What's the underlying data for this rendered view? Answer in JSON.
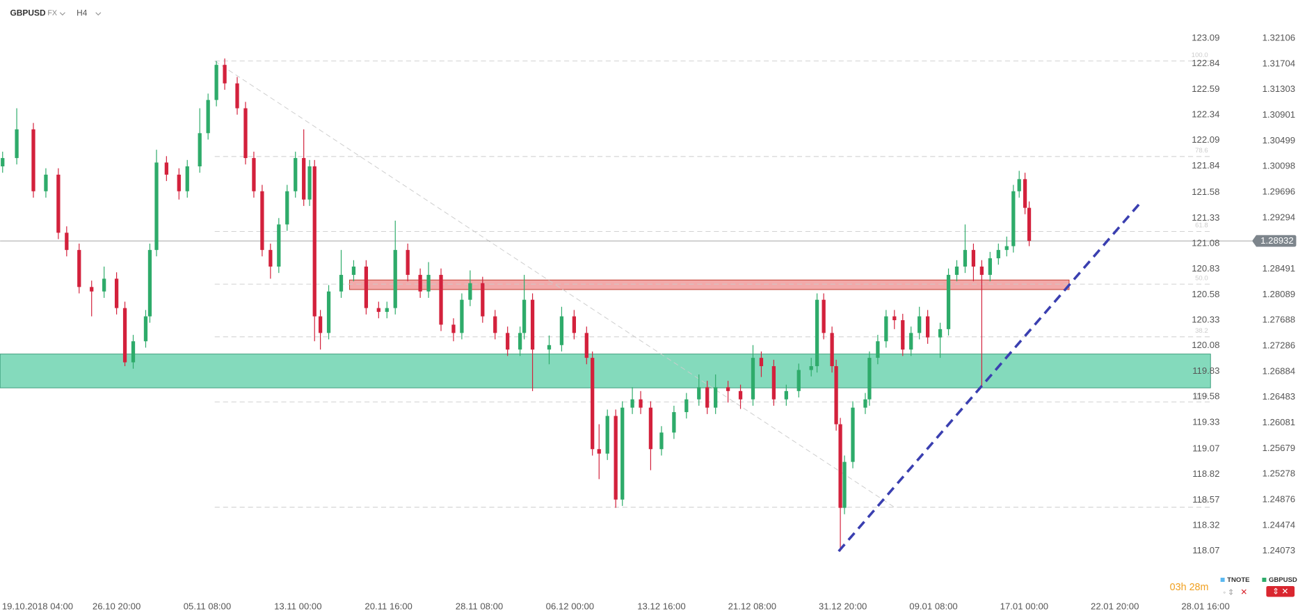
{
  "chart_data": {
    "type": "candlestick",
    "symbol": "GBPUSD",
    "market": "FX",
    "timeframe": "H4",
    "up_color": "#2eab6a",
    "down_color": "#d3213c",
    "xlim": [
      0,
      145.5
    ],
    "ylim": [
      1.23382,
      1.32706
    ],
    "yticks": [
      1.32106,
      1.31704,
      1.31303,
      1.30901,
      1.30499,
      1.30098,
      1.29696,
      1.29294,
      1.28491,
      1.28089,
      1.27688,
      1.27286,
      1.26884,
      1.26483,
      1.26081,
      1.25679,
      1.25278,
      1.24876,
      1.24474,
      1.24073
    ],
    "y2lim": [
      117.638,
      123.465
    ],
    "y2ticks": [
      123.09,
      122.84,
      122.59,
      122.34,
      122.09,
      121.84,
      121.58,
      121.33,
      121.08,
      120.83,
      120.58,
      120.33,
      120.08,
      119.83,
      119.58,
      119.33,
      119.07,
      118.82,
      118.57,
      118.32,
      118.07
    ],
    "xticks": [
      {
        "value": 4.5,
        "label": "19.10.2018  04:00"
      },
      {
        "value": 14,
        "label": "26.10  20:00"
      },
      {
        "value": 24.9,
        "label": "05.11  08:00"
      },
      {
        "value": 35.8,
        "label": "13.11  00:00"
      },
      {
        "value": 46.7,
        "label": "20.11  16:00"
      },
      {
        "value": 57.6,
        "label": "28.11  08:00"
      },
      {
        "value": 68.5,
        "label": "06.12  00:00"
      },
      {
        "value": 79.5,
        "label": "13.12  16:00"
      },
      {
        "value": 90.4,
        "label": "21.12  08:00"
      },
      {
        "value": 101.3,
        "label": "31.12  20:00"
      },
      {
        "value": 112.2,
        "label": "09.01  08:00"
      },
      {
        "value": 123.1,
        "label": "17.01  00:00"
      },
      {
        "value": 134,
        "label": "22.01  20:00"
      },
      {
        "value": 144.9,
        "label": "28.01  16:00"
      }
    ],
    "x": [
      0.3,
      2,
      4,
      5.5,
      7,
      8,
      9.5,
      11,
      12.5,
      14,
      15,
      16,
      17.5,
      18,
      18.8,
      20,
      21.5,
      22.5,
      24,
      25,
      26,
      27,
      28.5,
      29.5,
      30.5,
      31.5,
      32.5,
      33.5,
      34.5,
      35.5,
      36.5,
      37.2,
      37.8,
      38.5,
      39.5,
      41,
      42.5,
      44,
      45.5,
      46.5,
      47.5,
      49,
      50.5,
      51.5,
      53,
      54.5,
      55.5,
      56.5,
      58,
      59.5,
      61,
      62.5,
      63,
      64,
      66,
      67.5,
      69,
      70.5,
      71.2,
      72,
      73,
      74,
      74.8,
      76,
      77,
      78.2,
      79.5,
      81,
      82.5,
      84,
      85,
      86,
      87.5,
      89,
      90.5,
      91.5,
      93,
      94.5,
      96,
      97.5,
      98.2,
      99,
      100,
      100.5,
      101,
      101.5,
      102.5,
      104,
      104.5,
      105.5,
      106.5,
      107.5,
      108.5,
      109.5,
      110.5,
      111.5,
      113,
      114,
      115,
      116,
      117,
      118,
      119,
      120,
      121,
      121.8,
      122.5,
      123.2,
      123.7
    ],
    "ohlc": [
      [
        1.301,
        1.3033,
        1.3,
        1.3023
      ],
      [
        1.3023,
        1.3101,
        1.3013,
        1.3068
      ],
      [
        1.3068,
        1.3078,
        1.2961,
        1.2971
      ],
      [
        1.2971,
        1.3007,
        1.2961,
        1.2997
      ],
      [
        1.2997,
        1.3007,
        1.2896,
        1.2906
      ],
      [
        1.2906,
        1.2916,
        1.2869,
        1.2879
      ],
      [
        1.2879,
        1.2889,
        1.2811,
        1.2821
      ],
      [
        1.2821,
        1.2831,
        1.2775,
        1.2814
      ],
      [
        1.2814,
        1.2853,
        1.2804,
        1.2834
      ],
      [
        1.2834,
        1.2844,
        1.2778,
        1.2788
      ],
      [
        1.2788,
        1.2798,
        1.2697,
        1.2703
      ],
      [
        1.2703,
        1.2746,
        1.2693,
        1.2736
      ],
      [
        1.2736,
        1.2785,
        1.2726,
        1.2775
      ],
      [
        1.2775,
        1.2889,
        1.2765,
        1.2879
      ],
      [
        1.2879,
        1.3036,
        1.2869,
        1.3016
      ],
      [
        1.3016,
        1.3026,
        1.2987,
        1.2997
      ],
      [
        1.2997,
        1.3007,
        1.2958,
        1.2971
      ],
      [
        1.2971,
        1.302,
        1.2961,
        1.301
      ],
      [
        1.301,
        1.3101,
        1.3,
        1.3062
      ],
      [
        1.3062,
        1.3124,
        1.3052,
        1.3114
      ],
      [
        1.3114,
        1.3175,
        1.3104,
        1.3169
      ],
      [
        1.3169,
        1.3179,
        1.313,
        1.314
      ],
      [
        1.314,
        1.315,
        1.3091,
        1.3101
      ],
      [
        1.3101,
        1.3111,
        1.3013,
        1.3023
      ],
      [
        1.3023,
        1.3033,
        1.2961,
        1.2971
      ],
      [
        1.2971,
        1.2981,
        1.2869,
        1.2879
      ],
      [
        1.2879,
        1.2889,
        1.2834,
        1.2853
      ],
      [
        1.2853,
        1.2929,
        1.2843,
        1.2919
      ],
      [
        1.2919,
        1.2981,
        1.2909,
        1.2971
      ],
      [
        1.2971,
        1.3033,
        1.2961,
        1.3023
      ],
      [
        1.3023,
        1.3068,
        1.2948,
        1.2958
      ],
      [
        1.2958,
        1.302,
        1.2948,
        1.301
      ],
      [
        1.301,
        1.302,
        1.2736,
        1.2775
      ],
      [
        1.2775,
        1.2785,
        1.2723,
        1.2749
      ],
      [
        1.2749,
        1.2824,
        1.2739,
        1.2814
      ],
      [
        1.2814,
        1.2879,
        1.2804,
        1.284
      ],
      [
        1.284,
        1.2863,
        1.283,
        1.2853
      ],
      [
        1.2853,
        1.2863,
        1.2778,
        1.2788
      ],
      [
        1.2788,
        1.2798,
        1.2772,
        1.2782
      ],
      [
        1.2782,
        1.2798,
        1.2772,
        1.2788
      ],
      [
        1.2788,
        1.2925,
        1.2778,
        1.2879
      ],
      [
        1.2879,
        1.2889,
        1.283,
        1.284
      ],
      [
        1.284,
        1.285,
        1.2804,
        1.2814
      ],
      [
        1.2814,
        1.286,
        1.2804,
        1.284
      ],
      [
        1.284,
        1.285,
        1.2752,
        1.2762
      ],
      [
        1.2762,
        1.2772,
        1.2736,
        1.2749
      ],
      [
        1.2749,
        1.2811,
        1.2739,
        1.2801
      ],
      [
        1.2801,
        1.2847,
        1.2791,
        1.2827
      ],
      [
        1.2827,
        1.2837,
        1.2765,
        1.2775
      ],
      [
        1.2775,
        1.2785,
        1.2739,
        1.2749
      ],
      [
        1.2749,
        1.2759,
        1.2713,
        1.2723
      ],
      [
        1.2723,
        1.2759,
        1.2713,
        1.2749
      ],
      [
        1.2749,
        1.284,
        1.2739,
        1.2801
      ],
      [
        1.2801,
        1.2811,
        1.2658,
        1.2723
      ],
      [
        1.2723,
        1.2745,
        1.27,
        1.273
      ],
      [
        1.273,
        1.279,
        1.272,
        1.2775
      ],
      [
        1.2775,
        1.2785,
        1.2739,
        1.2749
      ],
      [
        1.2749,
        1.2759,
        1.27,
        1.271
      ],
      [
        1.271,
        1.272,
        1.2557,
        1.2567
      ],
      [
        1.2567,
        1.2606,
        1.252,
        1.256
      ],
      [
        1.256,
        1.2629,
        1.255,
        1.2619
      ],
      [
        1.2619,
        1.2629,
        1.2475,
        1.2488
      ],
      [
        1.2488,
        1.2642,
        1.2478,
        1.2632
      ],
      [
        1.2632,
        1.2664,
        1.2622,
        1.2645
      ],
      [
        1.2645,
        1.2658,
        1.2622,
        1.2632
      ],
      [
        1.2632,
        1.2642,
        1.2534,
        1.2567
      ],
      [
        1.2567,
        1.2603,
        1.2557,
        1.2593
      ],
      [
        1.2593,
        1.2635,
        1.2583,
        1.2625
      ],
      [
        1.2625,
        1.2655,
        1.2615,
        1.2645
      ],
      [
        1.2645,
        1.2684,
        1.2635,
        1.2664
      ],
      [
        1.2664,
        1.2674,
        1.2622,
        1.2632
      ],
      [
        1.2632,
        1.2684,
        1.2622,
        1.2664
      ],
      [
        1.2664,
        1.2674,
        1.264,
        1.2658
      ],
      [
        1.2658,
        1.2668,
        1.263,
        1.2645
      ],
      [
        1.2645,
        1.273,
        1.2635,
        1.271
      ],
      [
        1.271,
        1.272,
        1.268,
        1.2697
      ],
      [
        1.2697,
        1.2707,
        1.2635,
        1.2645
      ],
      [
        1.2645,
        1.2668,
        1.2635,
        1.2658
      ],
      [
        1.2658,
        1.2701,
        1.2648,
        1.2691
      ],
      [
        1.2691,
        1.271,
        1.2681,
        1.2697
      ],
      [
        1.2697,
        1.2811,
        1.2687,
        1.2801
      ],
      [
        1.2801,
        1.2811,
        1.2739,
        1.2749
      ],
      [
        1.2749,
        1.2759,
        1.2687,
        1.2697
      ],
      [
        1.2697,
        1.2707,
        1.2596,
        1.2606
      ],
      [
        1.2606,
        1.2616,
        1.2407,
        1.2475
      ],
      [
        1.2475,
        1.2557,
        1.2465,
        1.2547
      ],
      [
        1.2547,
        1.2642,
        1.2537,
        1.2632
      ],
      [
        1.2632,
        1.2655,
        1.2622,
        1.2645
      ],
      [
        1.2645,
        1.272,
        1.2635,
        1.271
      ],
      [
        1.271,
        1.2746,
        1.27,
        1.2736
      ],
      [
        1.2736,
        1.2785,
        1.2726,
        1.2775
      ],
      [
        1.2775,
        1.2785,
        1.2755,
        1.2769
      ],
      [
        1.2769,
        1.2779,
        1.2713,
        1.2723
      ],
      [
        1.2723,
        1.2759,
        1.2713,
        1.2749
      ],
      [
        1.2749,
        1.279,
        1.2739,
        1.2775
      ],
      [
        1.2775,
        1.2785,
        1.2732,
        1.2742
      ],
      [
        1.2742,
        1.2765,
        1.271,
        1.2755
      ],
      [
        1.2755,
        1.285,
        1.2745,
        1.284
      ],
      [
        1.284,
        1.2863,
        1.283,
        1.2853
      ],
      [
        1.2853,
        1.2919,
        1.2843,
        1.2879
      ],
      [
        1.2879,
        1.2889,
        1.283,
        1.2853
      ],
      [
        1.2853,
        1.2863,
        1.2664,
        1.284
      ],
      [
        1.284,
        1.2876,
        1.283,
        1.2866
      ],
      [
        1.2866,
        1.2889,
        1.2856,
        1.2879
      ],
      [
        1.2879,
        1.29,
        1.2869,
        1.2885
      ],
      [
        1.2885,
        1.2981,
        1.2875,
        1.2971
      ],
      [
        1.2971,
        1.3003,
        1.2961,
        1.299
      ],
      [
        1.299,
        1.3,
        1.2935,
        1.2945
      ],
      [
        1.2945,
        1.2955,
        1.2885,
        1.28932
      ]
    ],
    "current_price": 1.28932,
    "zones": [
      {
        "x": [
          0,
          145.5
        ],
        "range": [
          1.2716,
          1.2663
        ],
        "color": "#6fd4b0"
      },
      {
        "x": [
          42,
          128.5
        ],
        "range": [
          1.2832,
          1.2817
        ],
        "color": "#f09a9a"
      }
    ],
    "fib": {
      "x": [
        25.8,
        107.5
      ],
      "prices": [
        1.3175,
        1.2476
      ],
      "levels": [
        {
          "value": 100,
          "label": "100.0"
        },
        {
          "value": 78.6,
          "label": "78.6"
        },
        {
          "value": 61.8,
          "label": "61.8"
        },
        {
          "value": 50,
          "label": "50.0"
        },
        {
          "value": 38.2,
          "label": "38.2"
        },
        {
          "value": 23.6,
          "label": "23.6"
        },
        {
          "value": 0,
          "label": "0.0"
        }
      ]
    },
    "trendline": {
      "x": [
        100.8,
        137.2
      ],
      "prices": [
        1.2407,
        1.2955
      ],
      "color": "#3a3fb0"
    },
    "countdown": "03h 28m",
    "legend": [
      {
        "name": "TNOTE",
        "color": "#5bb8f0"
      },
      {
        "name": "GBPUSD",
        "color": "#2eab6a"
      }
    ]
  }
}
